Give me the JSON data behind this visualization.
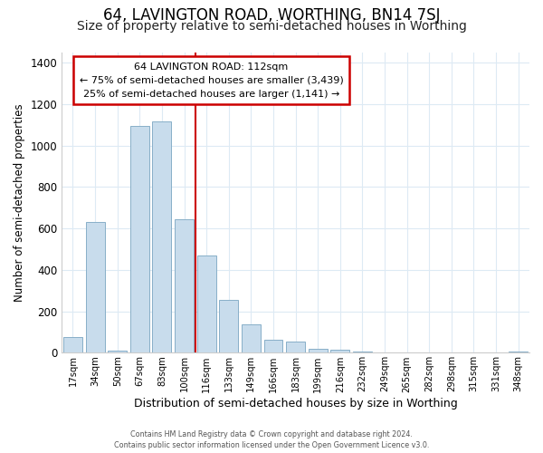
{
  "title": "64, LAVINGTON ROAD, WORTHING, BN14 7SJ",
  "subtitle": "Size of property relative to semi-detached houses in Worthing",
  "xlabel": "Distribution of semi-detached houses by size in Worthing",
  "ylabel": "Number of semi-detached properties",
  "bar_labels": [
    "17sqm",
    "34sqm",
    "50sqm",
    "67sqm",
    "83sqm",
    "100sqm",
    "116sqm",
    "133sqm",
    "149sqm",
    "166sqm",
    "183sqm",
    "199sqm",
    "216sqm",
    "232sqm",
    "249sqm",
    "265sqm",
    "282sqm",
    "298sqm",
    "315sqm",
    "331sqm",
    "348sqm"
  ],
  "bar_values": [
    75,
    630,
    10,
    1095,
    1115,
    645,
    470,
    255,
    138,
    65,
    55,
    20,
    15,
    5,
    2,
    1,
    0,
    0,
    0,
    0,
    8
  ],
  "bar_color": "#c8dcec",
  "bar_edge_color": "#88afc8",
  "vline_index": 6,
  "ann_line1": "64 LAVINGTON ROAD: 112sqm",
  "ann_line2": "← 75% of semi-detached houses are smaller (3,439)",
  "ann_line3": "25% of semi-detached houses are larger (1,141) →",
  "annotation_box_edge": "#cc0000",
  "vline_color": "#cc0000",
  "ylim": [
    0,
    1450
  ],
  "yticks": [
    0,
    200,
    400,
    600,
    800,
    1000,
    1200,
    1400
  ],
  "footer_line1": "Contains HM Land Registry data © Crown copyright and database right 2024.",
  "footer_line2": "Contains public sector information licensed under the Open Government Licence v3.0.",
  "bg_color": "#ffffff",
  "grid_color": "#ddeaf4",
  "title_fontsize": 12,
  "subtitle_fontsize": 10
}
